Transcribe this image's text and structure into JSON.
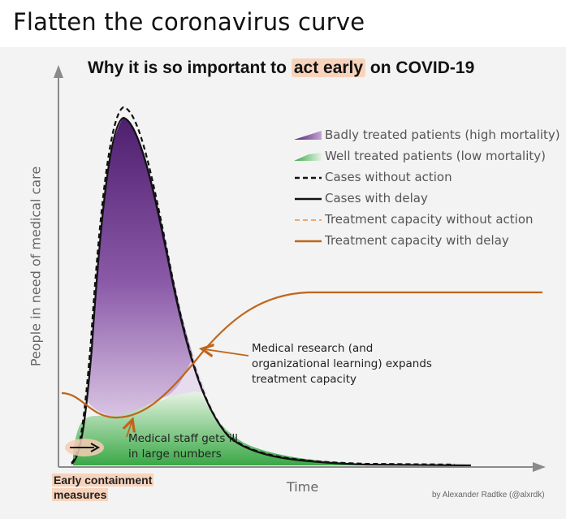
{
  "page_title": "Flatten the coronavirus curve",
  "chart_title": {
    "before": "Why it is so important to ",
    "highlight": "act early",
    "after": " on COVID-19"
  },
  "legend": [
    {
      "label": "Badly treated patients (high mortality)",
      "swatch": "purple-gradient"
    },
    {
      "label": "Well treated patients (low mortality)",
      "swatch": "green-gradient"
    },
    {
      "label": "Cases without action",
      "swatch": "black-dashed"
    },
    {
      "label": "Cases with delay",
      "swatch": "black-solid"
    },
    {
      "label": "Treatment capacity without action",
      "swatch": "orange-dashed"
    },
    {
      "label": "Treatment capacity with delay",
      "swatch": "orange-solid"
    }
  ],
  "notes": {
    "research_line1": "Medical research (and",
    "research_line2": "organizational learning) expands",
    "research_line3": "treatment capacity",
    "staff_line1": "Medical staff gets ill",
    "staff_line2": "in large numbers"
  },
  "axes": {
    "ylabel": "People in need of medical care",
    "xlabel": "Time"
  },
  "early_containment": {
    "line1": "Early containment",
    "line2": "measures"
  },
  "credit": "by Alexander Radtke (@alxrdk)",
  "colors": {
    "purple_dark": "#5a2a7a",
    "purple_light": "#c6a6d6",
    "green_dark": "#3fae4a",
    "green_light": "#e6f4e3",
    "orange": "#c0651a",
    "highlight": "#f8d3bb"
  }
}
